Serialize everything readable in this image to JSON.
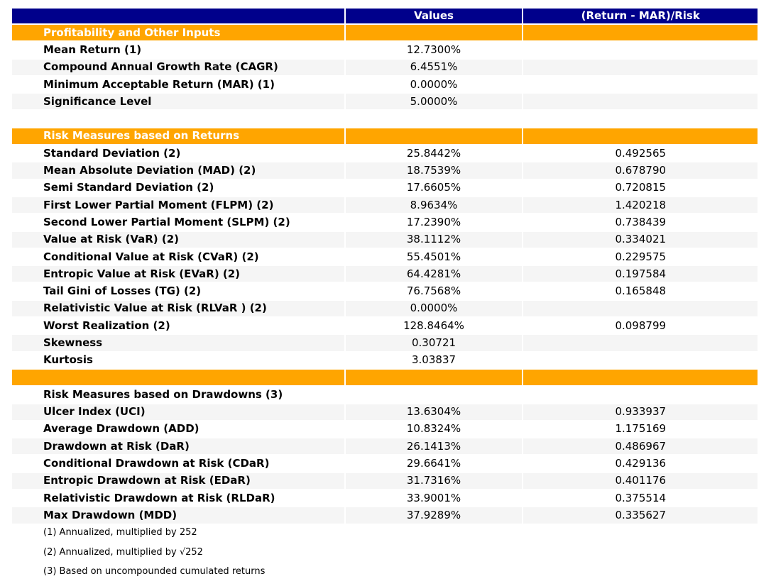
{
  "chart_data": {
    "type": "table",
    "columns": [
      "",
      "Values",
      "(Return - MAR)/Risk"
    ],
    "rows": [
      {
        "type": "section",
        "label": "Profitability and Other Inputs",
        "value": "",
        "ratio": ""
      },
      {
        "type": "data",
        "shaded": false,
        "label": "Mean Return (1)",
        "value": "12.7300%",
        "ratio": ""
      },
      {
        "type": "data",
        "shaded": true,
        "label": "Compound Annual Growth Rate (CAGR)",
        "value": "6.4551%",
        "ratio": ""
      },
      {
        "type": "data",
        "shaded": false,
        "label": "Minimum Acceptable Return (MAR) (1)",
        "value": "0.0000%",
        "ratio": ""
      },
      {
        "type": "data",
        "shaded": true,
        "label": "Significance Level",
        "value": "5.0000%",
        "ratio": ""
      },
      {
        "type": "blank",
        "label": "",
        "value": "",
        "ratio": ""
      },
      {
        "type": "section",
        "label": "Risk Measures based on Returns",
        "value": "",
        "ratio": ""
      },
      {
        "type": "data",
        "shaded": false,
        "label": "Standard Deviation (2)",
        "value": "25.8442%",
        "ratio": "0.492565"
      },
      {
        "type": "data",
        "shaded": true,
        "label": "Mean Absolute Deviation (MAD) (2)",
        "value": "18.7539%",
        "ratio": "0.678790"
      },
      {
        "type": "data",
        "shaded": false,
        "label": "Semi Standard Deviation (2)",
        "value": "17.6605%",
        "ratio": "0.720815"
      },
      {
        "type": "data",
        "shaded": true,
        "label": "First Lower Partial Moment (FLPM) (2)",
        "value": "8.9634%",
        "ratio": "1.420218"
      },
      {
        "type": "data",
        "shaded": false,
        "label": "Second Lower Partial Moment (SLPM) (2)",
        "value": "17.2390%",
        "ratio": "0.738439"
      },
      {
        "type": "data",
        "shaded": true,
        "label": "Value at Risk (VaR) (2)",
        "value": "38.1112%",
        "ratio": "0.334021"
      },
      {
        "type": "data",
        "shaded": false,
        "label": "Conditional Value at Risk (CVaR) (2)",
        "value": "55.4501%",
        "ratio": "0.229575"
      },
      {
        "type": "data",
        "shaded": true,
        "label": "Entropic Value at Risk (EVaR) (2)",
        "value": "64.4281%",
        "ratio": "0.197584"
      },
      {
        "type": "data",
        "shaded": false,
        "label": "Tail Gini of Losses (TG) (2)",
        "value": "76.7568%",
        "ratio": "0.165848"
      },
      {
        "type": "data",
        "shaded": true,
        "label": "Relativistic Value at Risk (RLVaR ) (2)",
        "value": "0.0000%",
        "ratio": ""
      },
      {
        "type": "data",
        "shaded": false,
        "label": "Worst Realization (2)",
        "value": "128.8464%",
        "ratio": "0.098799"
      },
      {
        "type": "data",
        "shaded": true,
        "label": "Skewness",
        "value": "0.30721",
        "ratio": ""
      },
      {
        "type": "data",
        "shaded": false,
        "label": "Kurtosis",
        "value": "3.03837",
        "ratio": ""
      },
      {
        "type": "orange_blank",
        "label": "",
        "value": "",
        "ratio": ""
      },
      {
        "type": "title",
        "label": "Risk Measures based on Drawdowns (3)",
        "value": "",
        "ratio": ""
      },
      {
        "type": "data",
        "shaded": true,
        "label": "Ulcer Index (UCI)",
        "value": "13.6304%",
        "ratio": "0.933937"
      },
      {
        "type": "data",
        "shaded": false,
        "label": "Average Drawdown (ADD)",
        "value": "10.8324%",
        "ratio": "1.175169"
      },
      {
        "type": "data",
        "shaded": true,
        "label": "Drawdown at Risk (DaR)",
        "value": "26.1413%",
        "ratio": "0.486967"
      },
      {
        "type": "data",
        "shaded": false,
        "label": "Conditional Drawdown at Risk (CDaR)",
        "value": "29.6641%",
        "ratio": "0.429136"
      },
      {
        "type": "data",
        "shaded": true,
        "label": "Entropic Drawdown at Risk (EDaR)",
        "value": "31.7316%",
        "ratio": "0.401176"
      },
      {
        "type": "data",
        "shaded": false,
        "label": "Relativistic Drawdown at Risk (RLDaR)",
        "value": "33.9001%",
        "ratio": "0.375514"
      },
      {
        "type": "data",
        "shaded": true,
        "label": "Max Drawdown (MDD)",
        "value": "37.9289%",
        "ratio": "0.335627"
      }
    ]
  },
  "footnotes": [
    "(1) Annualized, multiplied by 252",
    "(2) Annualized, multiplied by √252",
    "(3) Based on uncompounded cumulated returns"
  ],
  "colors": {
    "header_bg": "#00008B",
    "header_text": "#FFFFFF",
    "section_bg": "#FFA500",
    "section_text": "#FFFFFF",
    "shaded_row_bg": "#F5F5F5",
    "text": "#000000"
  }
}
